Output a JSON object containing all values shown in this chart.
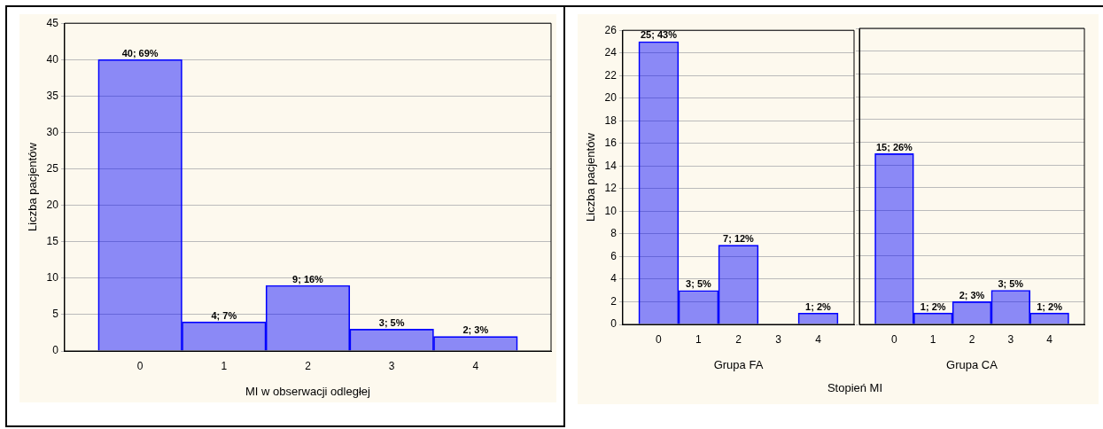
{
  "chart_data": [
    {
      "type": "bar",
      "xlabel": "MI w obserwacji odległej",
      "ylabel": "Liczba pacjentów",
      "categories": [
        "0",
        "1",
        "2",
        "3",
        "4"
      ],
      "values": [
        40,
        4,
        9,
        3,
        2
      ],
      "value_labels": [
        "40; 69%",
        "4; 7%",
        "9; 16%",
        "3; 5%",
        "2; 3%"
      ],
      "color": "#0000ff",
      "ylim": [
        0,
        45
      ],
      "yticks": [
        0,
        5,
        10,
        15,
        20,
        25,
        30,
        35,
        40,
        45
      ],
      "grid": "y"
    },
    {
      "type": "bar",
      "xlabel": "Grupa FA",
      "ylabel": "Liczba pacjentów",
      "categories": [
        "0",
        "1",
        "2",
        "3",
        "4"
      ],
      "values": [
        25,
        3,
        7,
        0,
        1
      ],
      "value_labels": [
        "25; 43%",
        "3; 5%",
        "7; 12%",
        null,
        "1; 2%"
      ],
      "color": "#0000ff",
      "ylim": [
        0,
        26
      ],
      "yticks": [
        0,
        2,
        4,
        6,
        8,
        10,
        12,
        14,
        16,
        18,
        20,
        22,
        24,
        26
      ],
      "grid": "y"
    },
    {
      "type": "bar",
      "xlabel": "Grupa CA",
      "categories": [
        "0",
        "1",
        "2",
        "3",
        "4"
      ],
      "values": [
        15,
        1,
        2,
        3,
        1
      ],
      "value_labels": [
        "15; 26%",
        "1; 2%",
        "2; 3%",
        "3; 5%",
        "1; 2%"
      ],
      "color": "#0000ff",
      "ylim": [
        0,
        26
      ],
      "yticks": [
        0,
        2,
        4,
        6,
        8,
        10,
        12,
        14,
        16,
        18,
        20,
        22,
        24,
        26
      ],
      "grid": "y",
      "tick_labels": "x",
      "annotations": [
        "Stopień MI"
      ]
    }
  ]
}
